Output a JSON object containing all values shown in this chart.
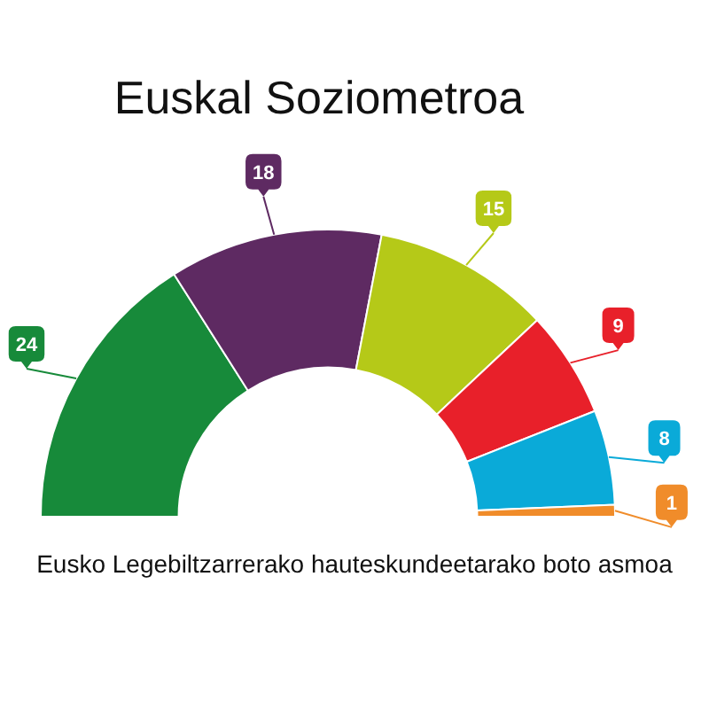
{
  "chart_data": {
    "type": "donut",
    "title": "Euskal Soziometroa",
    "categories": [
      null,
      null,
      null,
      null,
      null,
      null
    ],
    "values": [
      24,
      18,
      15,
      9,
      8,
      1
    ],
    "colors": [
      "#178a3a",
      "#5e2a62",
      "#b5c918",
      "#e8202a",
      "#0aaad8",
      "#f08c2a"
    ],
    "data_labels": true,
    "annotations": [
      "Eusko Legebiltzarrerako hauteskundeetarako boto asmoa"
    ]
  }
}
